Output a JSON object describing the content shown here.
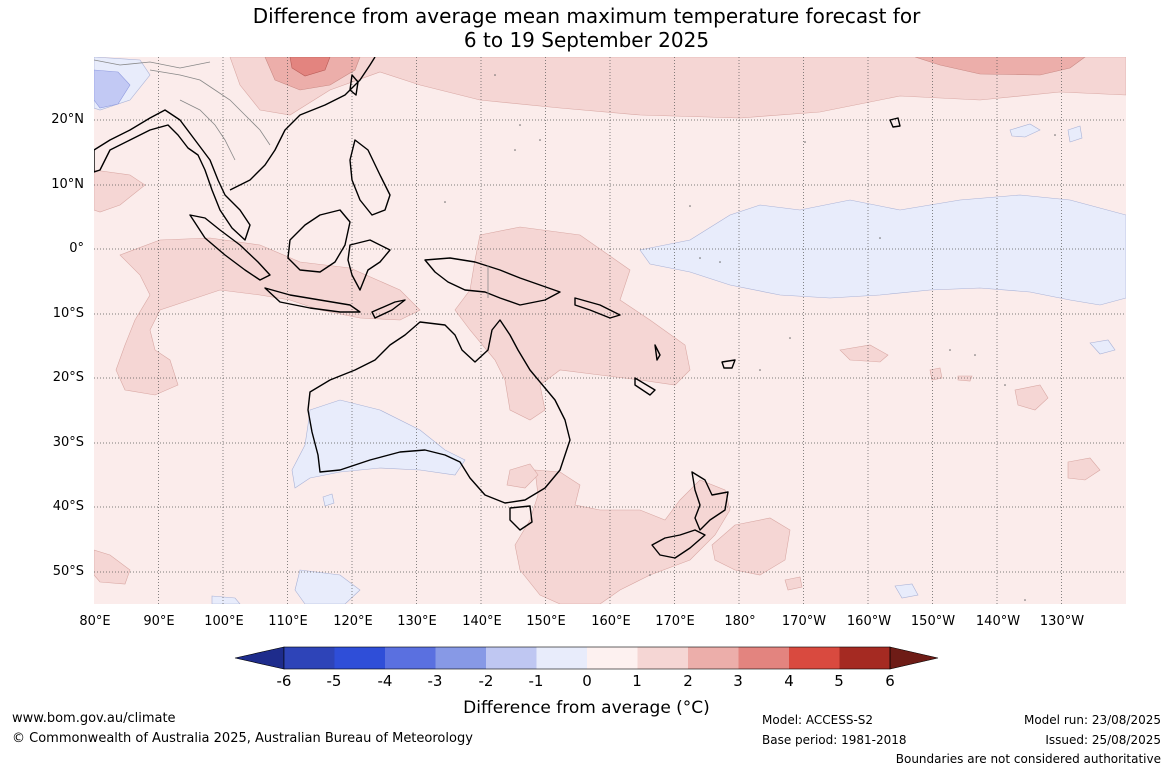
{
  "title_line1": "Difference from average mean maximum temperature forecast for",
  "title_line2": "6 to 19 September 2025",
  "map": {
    "lat_labels": [
      "20°N",
      "10°N",
      "0°",
      "10°S",
      "20°S",
      "30°S",
      "40°S",
      "50°S"
    ],
    "lon_labels": [
      "80°E",
      "90°E",
      "100°E",
      "110°E",
      "120°E",
      "130°E",
      "140°E",
      "150°E",
      "160°E",
      "170°E",
      "180°",
      "170°W",
      "160°W",
      "150°W",
      "140°W",
      "130°W"
    ],
    "colors": {
      "background_anomaly_0_1": "#fbeceb",
      "anomaly_1_2": "#f5d6d4",
      "anomaly_2_3": "#ecaeaa",
      "anomaly_3_4": "#e3847f",
      "anomaly_neg_0_1": "#e8ecfb",
      "anomaly_neg_1_2": "#c2c9f4",
      "coastline": "#000000",
      "gridline": "#555555"
    }
  },
  "colorbar": {
    "ticks": [
      "-6",
      "-5",
      "-4",
      "-3",
      "-2",
      "-1",
      "0",
      "1",
      "2",
      "3",
      "4",
      "5",
      "6"
    ],
    "colors": [
      "#1e2c8c",
      "#2e44b8",
      "#2f4ed8",
      "#5a70e0",
      "#8799e6",
      "#bfc7f2",
      "#e8ecfb",
      "#fdf1f0",
      "#f5d6d4",
      "#ecaeaa",
      "#e3847f",
      "#d94a3f",
      "#a52a22",
      "#6e1c16"
    ],
    "label": "Difference from average (°C)"
  },
  "footer": {
    "website": "www.bom.gov.au/climate",
    "copyright": "© Commonwealth of Australia 2025, Australian Bureau of Meteorology",
    "model": "Model: ACCESS-S2",
    "base_period": "Base period: 1981-2018",
    "model_run": "Model run: 23/08/2025",
    "issued": "Issued: 25/08/2025",
    "disclaimer": "Boundaries are not considered authoritative"
  }
}
